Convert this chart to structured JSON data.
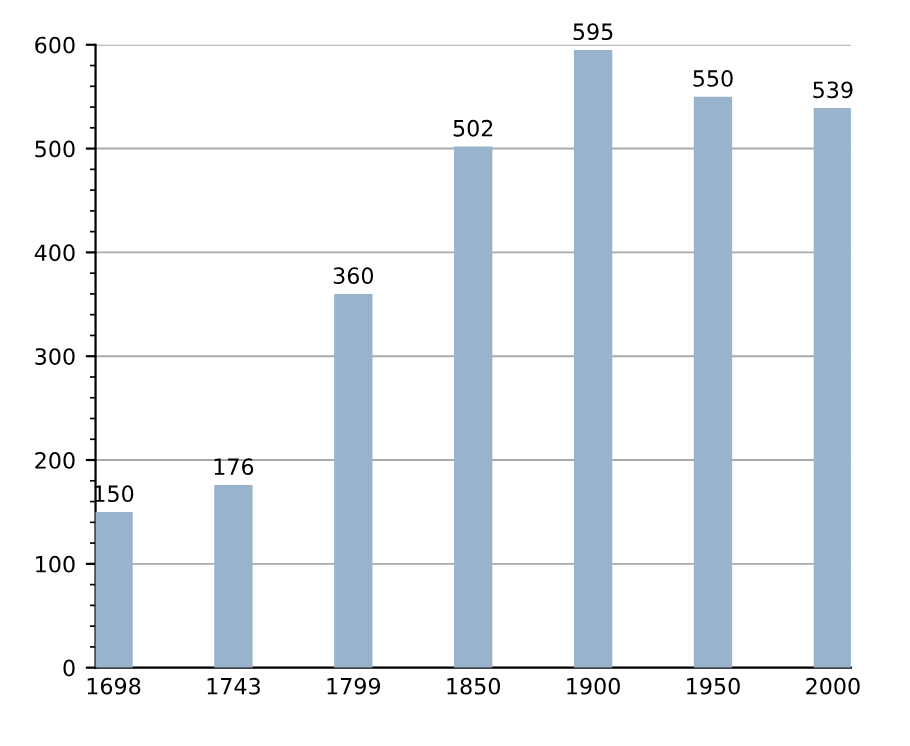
{
  "chart_data": {
    "type": "bar",
    "categories": [
      "1698",
      "1743",
      "1799",
      "1850",
      "1900",
      "1950",
      "2000"
    ],
    "values": [
      150,
      176,
      360,
      502,
      595,
      550,
      539
    ],
    "color": "#9ab3cc",
    "ylim": [
      0,
      600
    ],
    "yticks": [
      0,
      100,
      200,
      300,
      400,
      500,
      600
    ],
    "grid": "y",
    "data_labels": true
  }
}
